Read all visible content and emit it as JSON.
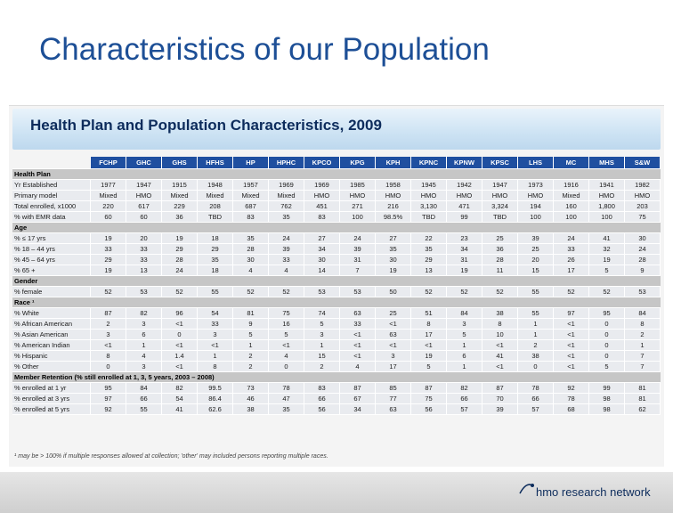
{
  "slide": {
    "title": "Characteristics of our Population"
  },
  "banner": {
    "title": "Health Plan and Population Characteristics, 2009"
  },
  "table": {
    "columns": [
      "FCHP",
      "GHC",
      "GHS",
      "HFHS",
      "HP",
      "HPHC",
      "KPCO",
      "KPG",
      "KPH",
      "KPNC",
      "KPNW",
      "KPSC",
      "LHS",
      "MC",
      "MHS",
      "S&W"
    ],
    "sections": [
      {
        "title": "Health Plan",
        "rows": [
          {
            "label": "Yr Established",
            "values": [
              "1977",
              "1947",
              "1915",
              "1948",
              "1957",
              "1969",
              "1969",
              "1985",
              "1958",
              "1945",
              "1942",
              "1947",
              "1973",
              "1916",
              "1941",
              "1982"
            ]
          },
          {
            "label": "Primary model",
            "values": [
              "Mixed",
              "HMO",
              "Mixed",
              "Mixed",
              "Mixed",
              "Mixed",
              "HMO",
              "HMO",
              "HMO",
              "HMO",
              "HMO",
              "HMO",
              "HMO",
              "Mixed",
              "HMO",
              "HMO"
            ]
          },
          {
            "label": "Total enrolled, x1000",
            "values": [
              "220",
              "617",
              "229",
              "208",
              "687",
              "762",
              "451",
              "271",
              "216",
              "3,130",
              "471",
              "3,324",
              "194",
              "160",
              "1,800",
              "203"
            ]
          },
          {
            "label": "% with EMR data",
            "values": [
              "60",
              "60",
              "36",
              "TBD",
              "83",
              "35",
              "83",
              "100",
              "98.5%",
              "TBD",
              "99",
              "TBD",
              "100",
              "100",
              "100",
              "75"
            ]
          }
        ]
      },
      {
        "title": "Age",
        "rows": [
          {
            "label": "% ≤ 17 yrs",
            "values": [
              "19",
              "20",
              "19",
              "18",
              "35",
              "24",
              "27",
              "24",
              "27",
              "22",
              "23",
              "25",
              "39",
              "24",
              "41",
              "30"
            ]
          },
          {
            "label": "% 18 – 44 yrs",
            "values": [
              "33",
              "33",
              "29",
              "29",
              "28",
              "39",
              "34",
              "39",
              "35",
              "35",
              "34",
              "36",
              "25",
              "33",
              "32",
              "24"
            ]
          },
          {
            "label": "% 45 – 64 yrs",
            "values": [
              "29",
              "33",
              "28",
              "35",
              "30",
              "33",
              "30",
              "31",
              "30",
              "29",
              "31",
              "28",
              "20",
              "26",
              "19",
              "28"
            ]
          },
          {
            "label": "% 65 +",
            "values": [
              "19",
              "13",
              "24",
              "18",
              "4",
              "4",
              "14",
              "7",
              "19",
              "13",
              "19",
              "11",
              "15",
              "17",
              "5",
              "9"
            ]
          }
        ]
      },
      {
        "title": "Gender",
        "rows": [
          {
            "label": "% female",
            "values": [
              "52",
              "53",
              "52",
              "55",
              "52",
              "52",
              "53",
              "53",
              "50",
              "52",
              "52",
              "52",
              "55",
              "52",
              "52",
              "53"
            ]
          }
        ]
      },
      {
        "title": "Race ¹",
        "rows": [
          {
            "label": "% White",
            "values": [
              "87",
              "82",
              "96",
              "54",
              "81",
              "75",
              "74",
              "63",
              "25",
              "51",
              "84",
              "38",
              "55",
              "97",
              "95",
              "84"
            ]
          },
          {
            "label": "% African American",
            "values": [
              "2",
              "3",
              "<1",
              "33",
              "9",
              "16",
              "5",
              "33",
              "<1",
              "8",
              "3",
              "8",
              "1",
              "<1",
              "0",
              "8"
            ]
          },
          {
            "label": "% Asian American",
            "values": [
              "3",
              "6",
              "0",
              "3",
              "5",
              "5",
              "3",
              "<1",
              "63",
              "17",
              "5",
              "10",
              "1",
              "<1",
              "0",
              "2"
            ]
          },
          {
            "label": "% American Indian",
            "values": [
              "<1",
              "1",
              "<1",
              "<1",
              "1",
              "<1",
              "1",
              "<1",
              "<1",
              "<1",
              "1",
              "<1",
              "2",
              "<1",
              "0",
              "1"
            ]
          },
          {
            "label": "% Hispanic",
            "values": [
              "8",
              "4",
              "1.4",
              "1",
              "2",
              "4",
              "15",
              "<1",
              "3",
              "19",
              "6",
              "41",
              "38",
              "<1",
              "0",
              "7"
            ]
          },
          {
            "label": "% Other",
            "values": [
              "0",
              "3",
              "<1",
              "8",
              "2",
              "0",
              "2",
              "4",
              "17",
              "5",
              "1",
              "<1",
              "0",
              "<1",
              "5",
              "7"
            ]
          }
        ]
      },
      {
        "title": "Member Retention (% still enrolled at 1, 3, 5 years, 2003 – 2008)",
        "rows": [
          {
            "label": "% enrolled at 1 yr",
            "values": [
              "95",
              "84",
              "82",
              "99.5",
              "73",
              "78",
              "83",
              "87",
              "85",
              "87",
              "82",
              "87",
              "78",
              "92",
              "99",
              "81"
            ]
          },
          {
            "label": "% enrolled at 3 yrs",
            "values": [
              "97",
              "66",
              "54",
              "86.4",
              "46",
              "47",
              "66",
              "67",
              "77",
              "75",
              "66",
              "70",
              "66",
              "78",
              "98",
              "81"
            ]
          },
          {
            "label": "% enrolled at 5 yrs",
            "values": [
              "92",
              "55",
              "41",
              "62.6",
              "38",
              "35",
              "56",
              "34",
              "63",
              "56",
              "57",
              "39",
              "57",
              "68",
              "98",
              "62"
            ]
          }
        ]
      }
    ]
  },
  "footnote": "¹ may be > 100% if multiple responses allowed at collection; 'other' may included persons reporting multiple races.",
  "logo": {
    "text": "hmo research network",
    "color": "#0d2c5c"
  }
}
